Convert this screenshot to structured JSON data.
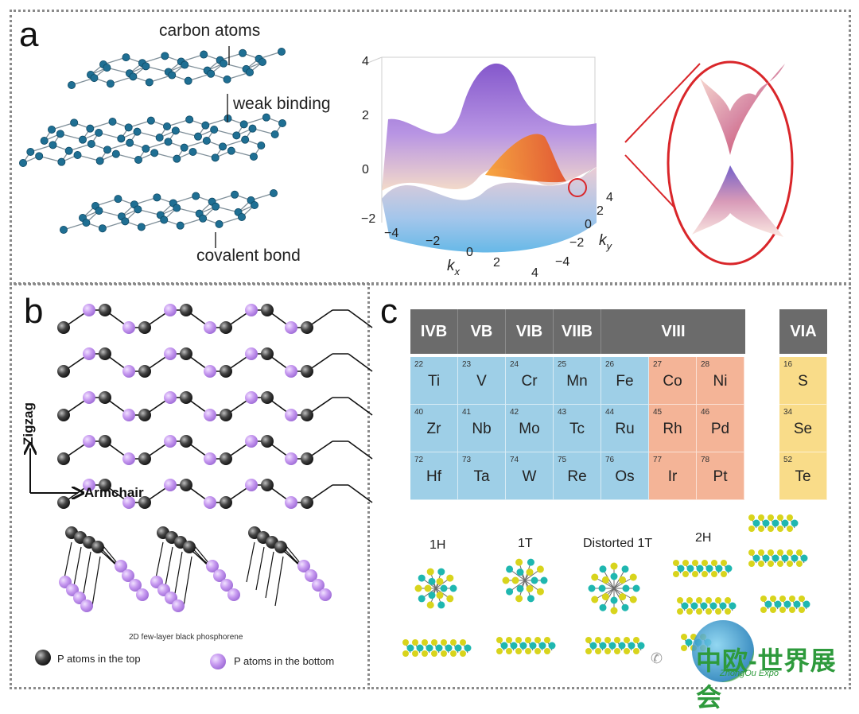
{
  "panel_a": {
    "letter": "a",
    "labels": {
      "carbon_atoms": "carbon atoms",
      "weak_binding": "weak binding",
      "covalent_bond": "covalent bond"
    },
    "surface_plot": {
      "z_ticks": [
        "4",
        "2",
        "0",
        "−2"
      ],
      "kx_ticks": [
        "−4",
        "−2",
        "0",
        "2",
        "4"
      ],
      "ky_ticks": [
        "4",
        "2",
        "0",
        "−2",
        "−4"
      ],
      "kx_label": "k",
      "kx_sub": "x",
      "ky_label": "k",
      "ky_sub": "y"
    },
    "colors": {
      "atom": "#1f6f93",
      "zoom_circle": "#d9262a"
    }
  },
  "panel_b": {
    "letter": "b",
    "axis_zigzag": "Zigzag",
    "axis_armchair": "Armchair",
    "caption": "2D few-layer black phosphorene",
    "legend_top": "P atoms in the top",
    "legend_bottom": "P atoms in the bottom",
    "colors": {
      "top_atom": "#333333",
      "bottom_atom": "#c79af0"
    }
  },
  "panel_c": {
    "letter": "c",
    "groups": [
      "IVB",
      "VB",
      "VIB",
      "VIIB",
      "VIII"
    ],
    "via_group": "VIA",
    "elements": [
      [
        {
          "n": "22",
          "s": "Ti",
          "c": "blue"
        },
        {
          "n": "23",
          "s": "V",
          "c": "blue"
        },
        {
          "n": "24",
          "s": "Cr",
          "c": "blue"
        },
        {
          "n": "25",
          "s": "Mn",
          "c": "blue"
        },
        {
          "n": "26",
          "s": "Fe",
          "c": "blue"
        },
        {
          "n": "27",
          "s": "Co",
          "c": "orange"
        },
        {
          "n": "28",
          "s": "Ni",
          "c": "orange"
        }
      ],
      [
        {
          "n": "40",
          "s": "Zr",
          "c": "blue"
        },
        {
          "n": "41",
          "s": "Nb",
          "c": "blue"
        },
        {
          "n": "42",
          "s": "Mo",
          "c": "blue"
        },
        {
          "n": "43",
          "s": "Tc",
          "c": "blue"
        },
        {
          "n": "44",
          "s": "Ru",
          "c": "blue"
        },
        {
          "n": "45",
          "s": "Rh",
          "c": "orange"
        },
        {
          "n": "46",
          "s": "Pd",
          "c": "orange"
        }
      ],
      [
        {
          "n": "72",
          "s": "Hf",
          "c": "blue"
        },
        {
          "n": "73",
          "s": "Ta",
          "c": "blue"
        },
        {
          "n": "74",
          "s": "W",
          "c": "blue"
        },
        {
          "n": "75",
          "s": "Re",
          "c": "blue"
        },
        {
          "n": "76",
          "s": "Os",
          "c": "blue"
        },
        {
          "n": "77",
          "s": "Ir",
          "c": "orange"
        },
        {
          "n": "78",
          "s": "Pt",
          "c": "orange"
        }
      ]
    ],
    "via_elements": [
      {
        "n": "16",
        "s": "S"
      },
      {
        "n": "34",
        "s": "Se"
      },
      {
        "n": "52",
        "s": "Te"
      }
    ],
    "structures": [
      "1H",
      "1T",
      "Distorted 1T",
      "2H"
    ],
    "colors": {
      "metal": "#1fb7b0",
      "chalcogen": "#d8d41c",
      "header": "#6b6b6b"
    }
  },
  "watermark": {
    "text": "中欧-世界展会",
    "sub": "ZhongOu Expo"
  }
}
